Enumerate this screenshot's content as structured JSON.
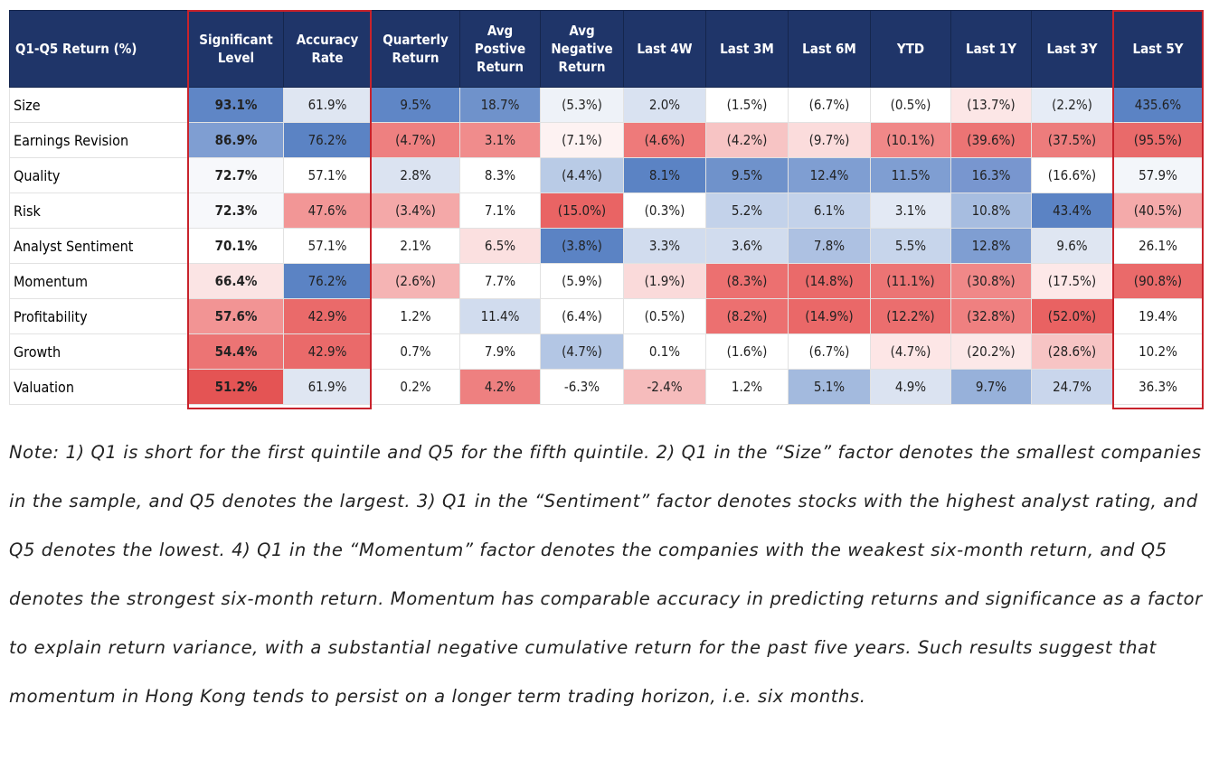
{
  "table": {
    "headers": [
      "Q1-Q5 Return (%)",
      "Significant Level",
      "Accuracy Rate",
      "Quarterly Return",
      "Avg Postive Return",
      "Avg Negative Return",
      "Last 4W",
      "Last 3M",
      "Last 6M",
      "YTD",
      "Last 1Y",
      "Last 3Y",
      "Last 5Y"
    ],
    "rows": [
      {
        "label": "Size",
        "cells": [
          {
            "text": "93.1%",
            "bg": "#5f86c6"
          },
          {
            "text": "61.9%",
            "bg": "#dfe6f2"
          },
          {
            "text": "9.5%",
            "bg": "#5f86c6"
          },
          {
            "text": "18.7%",
            "bg": "#6f92cb"
          },
          {
            "text": "(5.3%)",
            "bg": "#eef2f8"
          },
          {
            "text": "2.0%",
            "bg": "#d9e2f1"
          },
          {
            "text": "(1.5%)",
            "bg": "#ffffff"
          },
          {
            "text": "(6.7%)",
            "bg": "#ffffff"
          },
          {
            "text": "(0.5%)",
            "bg": "#ffffff"
          },
          {
            "text": "(13.7%)",
            "bg": "#fce6e6"
          },
          {
            "text": "(2.2%)",
            "bg": "#e6ecf6"
          },
          {
            "text": "435.6%",
            "bg": "#5b83c4"
          }
        ]
      },
      {
        "label": "Earnings Revision",
        "cells": [
          {
            "text": "86.9%",
            "bg": "#7f9ed2"
          },
          {
            "text": "76.2%",
            "bg": "#5b83c4"
          },
          {
            "text": "(4.7%)",
            "bg": "#ee8080"
          },
          {
            "text": "3.1%",
            "bg": "#f08c8c"
          },
          {
            "text": "(7.1%)",
            "bg": "#fdf2f2"
          },
          {
            "text": "(4.6%)",
            "bg": "#ee7a7a"
          },
          {
            "text": "(4.2%)",
            "bg": "#f7c4c4"
          },
          {
            "text": "(9.7%)",
            "bg": "#fbdcdc"
          },
          {
            "text": "(10.1%)",
            "bg": "#f08888"
          },
          {
            "text": "(39.6%)",
            "bg": "#ec7474"
          },
          {
            "text": "(37.5%)",
            "bg": "#ed7c7c"
          },
          {
            "text": "(95.5%)",
            "bg": "#e96a6a"
          }
        ]
      },
      {
        "label": "Quality",
        "cells": [
          {
            "text": "72.7%",
            "bg": "#f7f8fb"
          },
          {
            "text": "57.1%",
            "bg": "#ffffff"
          },
          {
            "text": "2.8%",
            "bg": "#dbe3f1"
          },
          {
            "text": "8.3%",
            "bg": "#ffffff"
          },
          {
            "text": "(4.4%)",
            "bg": "#b9cbe6"
          },
          {
            "text": "8.1%",
            "bg": "#5b83c4"
          },
          {
            "text": "9.5%",
            "bg": "#6f92cb"
          },
          {
            "text": "12.4%",
            "bg": "#7f9ed2"
          },
          {
            "text": "11.5%",
            "bg": "#7f9ed2"
          },
          {
            "text": "16.3%",
            "bg": "#7896cf"
          },
          {
            "text": "(16.6%)",
            "bg": "#ffffff"
          },
          {
            "text": "57.9%",
            "bg": "#f3f6fa"
          }
        ]
      },
      {
        "label": "Risk",
        "cells": [
          {
            "text": "72.3%",
            "bg": "#f7f8fb"
          },
          {
            "text": "47.6%",
            "bg": "#f29696"
          },
          {
            "text": "(3.4%)",
            "bg": "#f4a8a8"
          },
          {
            "text": "7.1%",
            "bg": "#ffffff"
          },
          {
            "text": "(15.0%)",
            "bg": "#e96464"
          },
          {
            "text": "(0.3%)",
            "bg": "#ffffff"
          },
          {
            "text": "5.2%",
            "bg": "#c3d2ea"
          },
          {
            "text": "6.1%",
            "bg": "#c3d2ea"
          },
          {
            "text": "3.1%",
            "bg": "#e3e9f4"
          },
          {
            "text": "10.8%",
            "bg": "#a7bde0"
          },
          {
            "text": "43.4%",
            "bg": "#5b83c4"
          },
          {
            "text": "(40.5%)",
            "bg": "#f4aaaa"
          }
        ]
      },
      {
        "label": "Analyst Sentiment",
        "cells": [
          {
            "text": "70.1%",
            "bg": "#ffffff"
          },
          {
            "text": "57.1%",
            "bg": "#ffffff"
          },
          {
            "text": "2.1%",
            "bg": "#ffffff"
          },
          {
            "text": "6.5%",
            "bg": "#fbe0e0"
          },
          {
            "text": "(3.8%)",
            "bg": "#5b83c4"
          },
          {
            "text": "3.3%",
            "bg": "#d1dcee"
          },
          {
            "text": "3.6%",
            "bg": "#d1dcee"
          },
          {
            "text": "7.8%",
            "bg": "#adc1e2"
          },
          {
            "text": "5.5%",
            "bg": "#c7d5eb"
          },
          {
            "text": "12.8%",
            "bg": "#7f9ed2"
          },
          {
            "text": "9.6%",
            "bg": "#dfe6f2"
          },
          {
            "text": "26.1%",
            "bg": "#ffffff"
          }
        ]
      },
      {
        "label": "Momentum",
        "cells": [
          {
            "text": "66.4%",
            "bg": "#fbe4e4"
          },
          {
            "text": "76.2%",
            "bg": "#5b83c4"
          },
          {
            "text": "(2.6%)",
            "bg": "#f5b4b4"
          },
          {
            "text": "7.7%",
            "bg": "#ffffff"
          },
          {
            "text": "(5.9%)",
            "bg": "#ffffff"
          },
          {
            "text": "(1.9%)",
            "bg": "#fadada"
          },
          {
            "text": "(8.3%)",
            "bg": "#ec7070"
          },
          {
            "text": "(14.8%)",
            "bg": "#ea6a6a"
          },
          {
            "text": "(11.1%)",
            "bg": "#ec7474"
          },
          {
            "text": "(30.8%)",
            "bg": "#f08888"
          },
          {
            "text": "(17.5%)",
            "bg": "#fde8e8"
          },
          {
            "text": "(90.8%)",
            "bg": "#ea6a6a"
          }
        ]
      },
      {
        "label": "Profitability",
        "cells": [
          {
            "text": "57.6%",
            "bg": "#f29494"
          },
          {
            "text": "42.9%",
            "bg": "#ea6a6a"
          },
          {
            "text": "1.2%",
            "bg": "#ffffff"
          },
          {
            "text": "11.4%",
            "bg": "#d1dcee"
          },
          {
            "text": "(6.4%)",
            "bg": "#ffffff"
          },
          {
            "text": "(0.5%)",
            "bg": "#ffffff"
          },
          {
            "text": "(8.2%)",
            "bg": "#ec7070"
          },
          {
            "text": "(14.9%)",
            "bg": "#ea6868"
          },
          {
            "text": "(12.2%)",
            "bg": "#eb6e6e"
          },
          {
            "text": "(32.8%)",
            "bg": "#ef8080"
          },
          {
            "text": "(52.0%)",
            "bg": "#e96262"
          },
          {
            "text": "19.4%",
            "bg": "#ffffff"
          }
        ]
      },
      {
        "label": "Growth",
        "cells": [
          {
            "text": "54.4%",
            "bg": "#ec7474"
          },
          {
            "text": "42.9%",
            "bg": "#ea6a6a"
          },
          {
            "text": "0.7%",
            "bg": "#ffffff"
          },
          {
            "text": "7.9%",
            "bg": "#ffffff"
          },
          {
            "text": "(4.7%)",
            "bg": "#b3c6e4"
          },
          {
            "text": "0.1%",
            "bg": "#ffffff"
          },
          {
            "text": "(1.6%)",
            "bg": "#ffffff"
          },
          {
            "text": "(6.7%)",
            "bg": "#ffffff"
          },
          {
            "text": "(4.7%)",
            "bg": "#fde6e6"
          },
          {
            "text": "(20.2%)",
            "bg": "#fce8e8"
          },
          {
            "text": "(28.6%)",
            "bg": "#f7c4c4"
          },
          {
            "text": "10.2%",
            "bg": "#ffffff"
          }
        ]
      },
      {
        "label": "Valuation",
        "cells": [
          {
            "text": "51.2%",
            "bg": "#e45454"
          },
          {
            "text": "61.9%",
            "bg": "#dfe6f2"
          },
          {
            "text": "0.2%",
            "bg": "#ffffff"
          },
          {
            "text": "4.2%",
            "bg": "#ee8080"
          },
          {
            "text": "-6.3%",
            "bg": "#ffffff"
          },
          {
            "text": "-2.4%",
            "bg": "#f6bcbc"
          },
          {
            "text": "1.2%",
            "bg": "#ffffff"
          },
          {
            "text": "5.1%",
            "bg": "#a3bade"
          },
          {
            "text": "4.9%",
            "bg": "#dbe3f1"
          },
          {
            "text": "9.7%",
            "bg": "#97b1da"
          },
          {
            "text": "24.7%",
            "bg": "#c9d6ec"
          },
          {
            "text": "36.3%",
            "bg": "#ffffff"
          }
        ]
      }
    ]
  },
  "note": "Note: 1) Q1 is short for the first quintile and Q5 for the fifth quintile. 2) Q1 in the “Size” factor denotes the smallest companies in the sample, and Q5 denotes the largest. 3) Q1 in the “Sentiment” factor denotes stocks with the highest analyst rating, and Q5 denotes the lowest. 4) Q1 in the “Momentum” factor denotes the companies with the weakest six-month return, and Q5 denotes the strongest six-month return. Momentum has comparable accuracy in predicting returns and significance as a factor to explain return variance, with a substantial negative cumulative return for the past five years. Such results suggest that momentum in Hong Kong tends to persist on a longer term trading horizon, i.e. six months.",
  "colors": {
    "header_bg": "#1f3569",
    "highlight_border": "#c8232c"
  }
}
